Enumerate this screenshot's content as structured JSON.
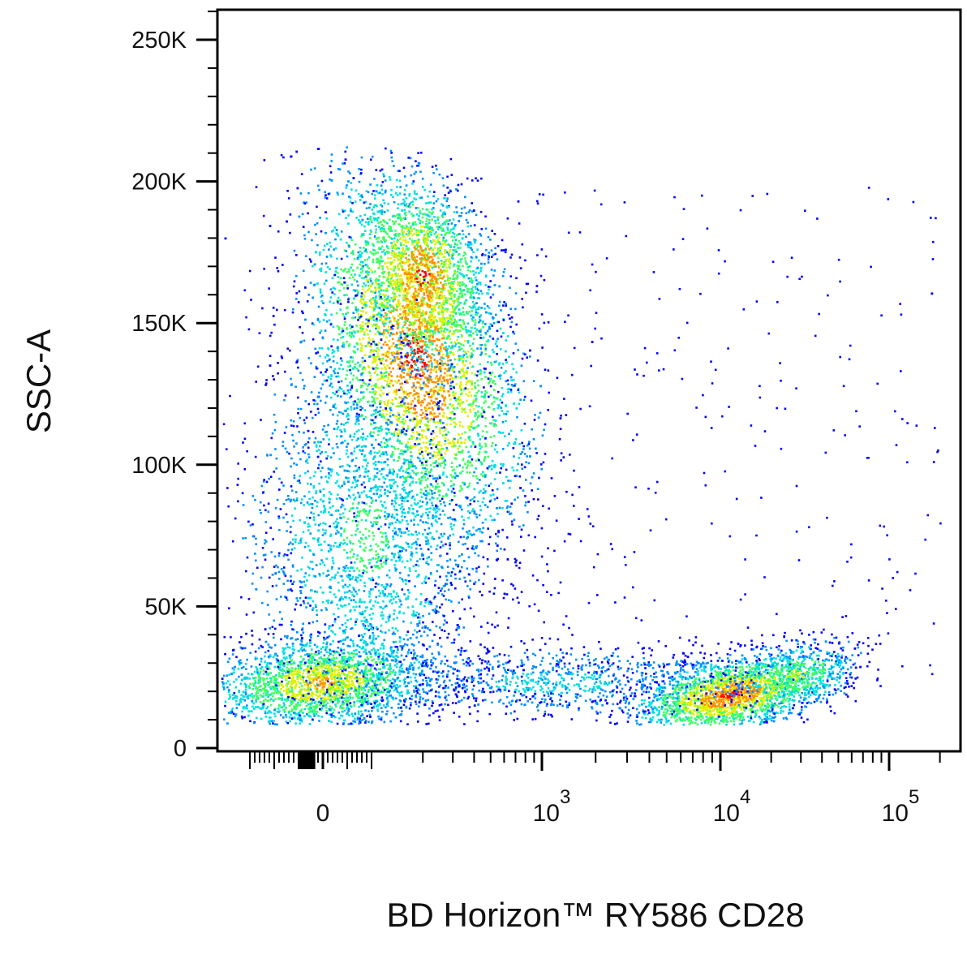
{
  "chart_data": {
    "type": "scatter",
    "style": "density pseudocolor dot plot",
    "xlabel": "BD Horizon™ RY586 CD28",
    "ylabel": "SSC-A",
    "x_scale": "biexponential",
    "ylim": [
      0,
      262144
    ],
    "xlim": [
      -200,
      262144
    ],
    "y_ticks": [
      {
        "value": 0,
        "label": "0"
      },
      {
        "value": 50000,
        "label": "50K"
      },
      {
        "value": 100000,
        "label": "100K"
      },
      {
        "value": 150000,
        "label": "150K"
      },
      {
        "value": 200000,
        "label": "200K"
      },
      {
        "value": 250000,
        "label": "250K"
      }
    ],
    "x_ticks": [
      {
        "value": 0,
        "base": "0",
        "exp": ""
      },
      {
        "value": 1000,
        "base": "10",
        "exp": "3"
      },
      {
        "value": 10000,
        "base": "10",
        "exp": "4"
      },
      {
        "value": 100000,
        "base": "10",
        "exp": "5"
      }
    ],
    "density_colors": [
      "#0000ff",
      "#0090ff",
      "#00e0e0",
      "#40ff60",
      "#e0f000",
      "#ff9000",
      "#ff0000"
    ],
    "populations": [
      {
        "x_center": 280,
        "y_center": 142000,
        "x_spread": "wide",
        "y_range": [
          95000,
          210000
        ],
        "peak_density": "high"
      },
      {
        "x_center": 30,
        "y_center": 24000,
        "y_range": [
          10000,
          40000
        ],
        "peak_density": "medium"
      },
      {
        "x_center": 180,
        "y_center": 70000,
        "y_range": [
          35000,
          110000
        ],
        "peak_density": "low"
      },
      {
        "x_center": 10000,
        "y_center": 19000,
        "y_range": [
          10000,
          35000
        ],
        "peak_density": "high"
      },
      {
        "x_center": 1500,
        "y_center": 22000,
        "y_range": [
          12000,
          32000
        ],
        "peak_density": "low"
      }
    ]
  }
}
